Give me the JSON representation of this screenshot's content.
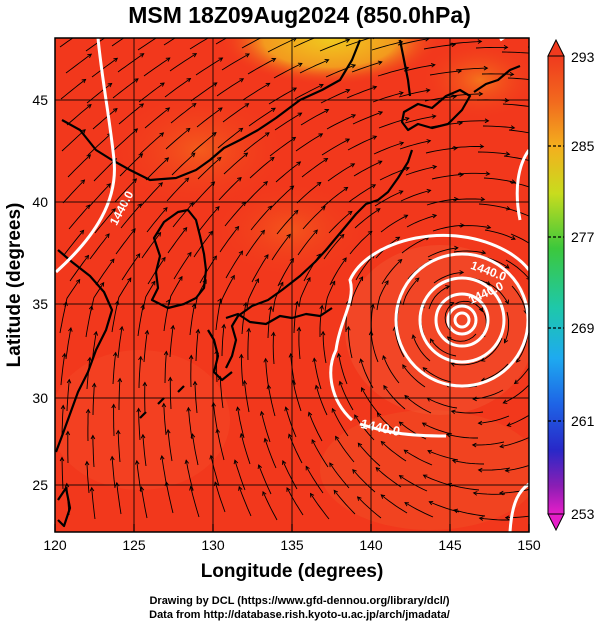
{
  "title": "MSM 18Z09Aug2024 (850.0hPa)",
  "xlabel": "Longitude (degrees)",
  "ylabel": "Latitude  (degrees)",
  "x_ticks": [
    "120",
    "125",
    "130",
    "135",
    "140",
    "145",
    "150"
  ],
  "y_ticks": [
    "45",
    "40",
    "35",
    "30",
    "25"
  ],
  "colorbar_ticks": [
    "293",
    "285",
    "277",
    "269",
    "261",
    "253"
  ],
  "contour_labels": [
    "1440.0",
    "1440.0",
    "1440.0",
    "1440.0"
  ],
  "credit_line1": "Drawing by DCL (https://www.gfd-dennou.org/library/dcl/)",
  "credit_line2": "Data from http://database.rish.kyoto-u.ac.jp/arch/jmadata/",
  "colors": {
    "field_main": "#f2381c",
    "field_warm": "#f5731c",
    "field_yellow": "#f0c81e",
    "contour": "#ffffff",
    "streamline": "#000000"
  }
}
